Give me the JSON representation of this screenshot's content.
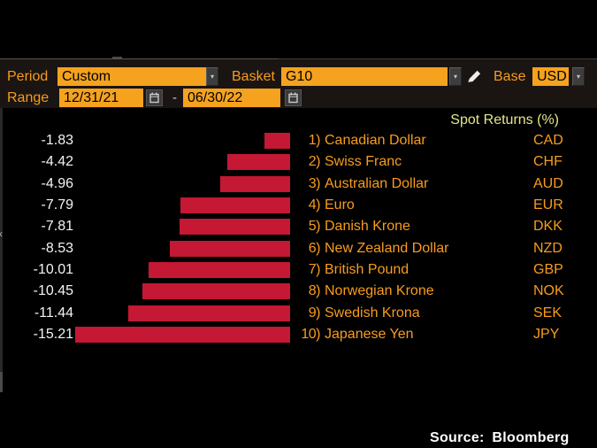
{
  "colors": {
    "amber_field": "#F5A21E",
    "label_orange": "#F89C1E",
    "bar_red": "#C41834",
    "title_khaki": "#E6E68C",
    "value_white": "#F4F4F4",
    "source_white": "#FFFFFF"
  },
  "toolbar": {
    "period_label": "Period",
    "period_value": "Custom",
    "basket_label": "Basket",
    "basket_value": "G10",
    "base_label": "Base",
    "base_value": "USD",
    "range_label": "Range",
    "range_start": "12/31/21",
    "range_separator": "-",
    "range_end": "06/30/22",
    "icons": {
      "period_dropdown": "chevron-down",
      "basket_dropdown": "chevron-down",
      "base_dropdown": "chevron-down",
      "edit": "pencil",
      "start_calendar": "calendar",
      "end_calendar": "calendar"
    }
  },
  "left_panel": {
    "collapse_arrow": "chevron-left"
  },
  "chart_data": {
    "type": "bar",
    "orientation": "horizontal",
    "title": "Spot Returns (%)",
    "xlim": [
      -15.21,
      0
    ],
    "grid": false,
    "legend": "none",
    "bar_color": "#C41834",
    "rows": [
      {
        "rank": "1)",
        "name": "Canadian Dollar",
        "code": "CAD",
        "value": -1.83,
        "display": "-1.83"
      },
      {
        "rank": "2)",
        "name": "Swiss Franc",
        "code": "CHF",
        "value": -4.42,
        "display": "-4.42"
      },
      {
        "rank": "3)",
        "name": "Australian Dollar",
        "code": "AUD",
        "value": -4.96,
        "display": "-4.96"
      },
      {
        "rank": "4)",
        "name": "Euro",
        "code": "EUR",
        "value": -7.79,
        "display": "-7.79"
      },
      {
        "rank": "5)",
        "name": "Danish Krone",
        "code": "DKK",
        "value": -7.81,
        "display": "-7.81"
      },
      {
        "rank": "6)",
        "name": "New Zealand Dollar",
        "code": "NZD",
        "value": -8.53,
        "display": "-8.53"
      },
      {
        "rank": "7)",
        "name": "British Pound",
        "code": "GBP",
        "value": -10.01,
        "display": "-10.01"
      },
      {
        "rank": "8)",
        "name": "Norwegian Krone",
        "code": "NOK",
        "value": -10.45,
        "display": "-10.45"
      },
      {
        "rank": "9)",
        "name": "Swedish Krona",
        "code": "SEK",
        "value": -11.44,
        "display": "-11.44"
      },
      {
        "rank": "10)",
        "name": "Japanese Yen",
        "code": "JPY",
        "value": -15.21,
        "display": "-15.21"
      }
    ]
  },
  "footer": {
    "source": "Source: Bloomberg"
  }
}
